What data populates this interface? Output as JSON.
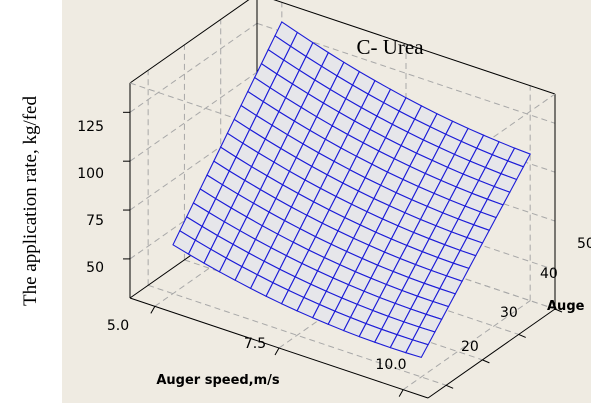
{
  "chart_data": {
    "type": "surface",
    "title": "C- Urea",
    "ylabel_outer": "The application rate, kg/fed",
    "xlabel": "Auger speed,m/s",
    "ylabel_depth": "Auge",
    "x_ticks": [
      "5.0",
      "7.5",
      "10.0"
    ],
    "y_ticks": [
      "20",
      "30",
      "40",
      "50"
    ],
    "z_ticks": [
      "50",
      "75",
      "100",
      "125"
    ],
    "xlim": [
      4.5,
      10.5
    ],
    "ylim": [
      15,
      50
    ],
    "zlim": [
      30,
      140
    ],
    "surface": {
      "x_range": [
        5.0,
        10.0
      ],
      "y_range": [
        20,
        50
      ],
      "z_corners": {
        "x_min_y_min": 55,
        "x_max_y_min": 40,
        "x_min_y_max": 130,
        "x_max_y_max": 105
      },
      "grid_lines_per_axis": 16
    },
    "colors": {
      "background": "#efebe2",
      "surface_fill": "#e6e6ea",
      "mesh_lines": "#1c1cd8",
      "box_lines": "#000000",
      "dashed_grid": "#a8a8a8"
    }
  }
}
